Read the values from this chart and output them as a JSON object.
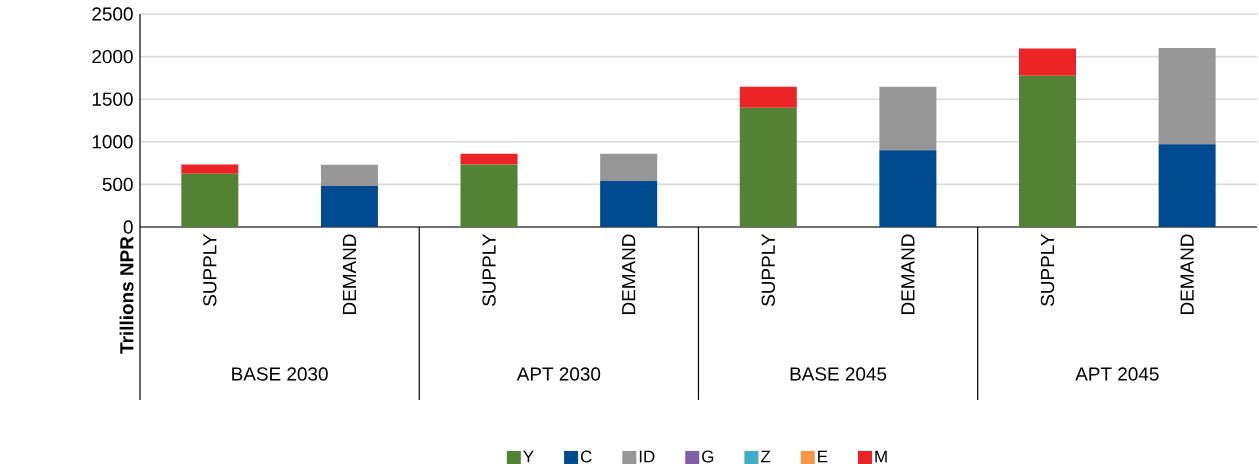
{
  "chart_data": {
    "type": "bar",
    "stacked": true,
    "ylabel": "Trillions NPR",
    "categories": [
      "SUPPLY",
      "DEMAND",
      "SUPPLY",
      "DEMAND",
      "SUPPLY",
      "DEMAND",
      "SUPPLY",
      "DEMAND"
    ],
    "annotations": [
      "BASE 2030",
      "APT 2030",
      "BASE 2045",
      "APT 2045"
    ],
    "series": [
      {
        "name": "Y",
        "color": "#548235",
        "values": [
          625,
          null,
          735,
          null,
          1400,
          null,
          1775,
          null
        ]
      },
      {
        "name": "C",
        "color": "#004a8f",
        "values": [
          null,
          480,
          null,
          540,
          null,
          900,
          null,
          970
        ]
      },
      {
        "name": "ID",
        "color": "#979797",
        "values": [
          null,
          250,
          null,
          320,
          null,
          745,
          null,
          1130
        ]
      },
      {
        "name": "G",
        "color": "#7f60a8",
        "values": [
          null,
          null,
          null,
          null,
          null,
          null,
          null,
          null
        ]
      },
      {
        "name": "Z",
        "color": "#41adc7",
        "values": [
          null,
          null,
          null,
          null,
          null,
          null,
          null,
          null
        ]
      },
      {
        "name": "E",
        "color": "#f79646",
        "values": [
          null,
          null,
          null,
          null,
          null,
          null,
          null,
          null
        ]
      },
      {
        "name": "M",
        "color": "#ec2426",
        "values": [
          110,
          null,
          125,
          null,
          245,
          null,
          320,
          null
        ]
      }
    ],
    "ylim": [
      0,
      2500
    ],
    "yticks": [
      0,
      500,
      1000,
      1500,
      2000,
      2500
    ],
    "grid": "y",
    "legend": "bottom"
  }
}
